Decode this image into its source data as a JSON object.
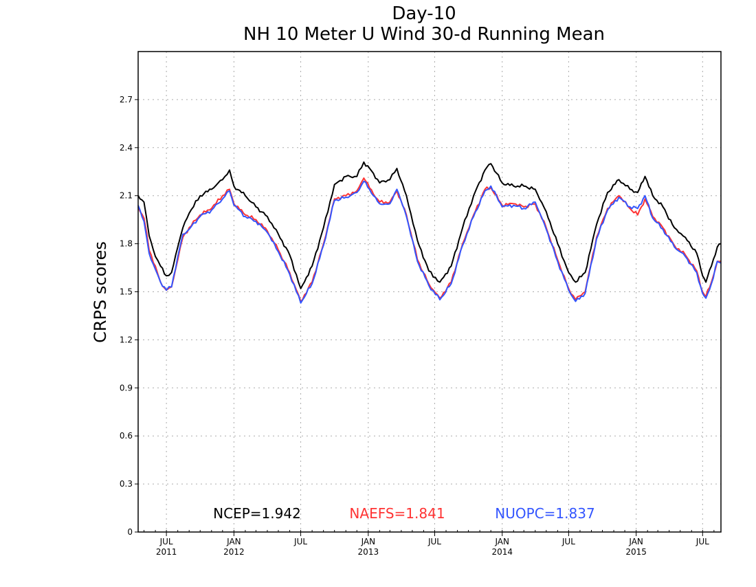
{
  "chart_data": {
    "type": "line",
    "title": "Day-10",
    "subtitle": "NH 10 Meter U Wind 30-d Running Mean",
    "xlabel": "",
    "ylabel": "CRPS scores",
    "ylim": [
      0,
      3.0
    ],
    "y_ticks": [
      "0",
      "0.3",
      "0.6",
      "0.9",
      "1.2",
      "1.5",
      "1.8",
      "2.1",
      "2.4",
      "2.7"
    ],
    "x_ticks": [
      {
        "month": "JUL",
        "year": "2011",
        "date": "2011-07-01"
      },
      {
        "month": "JAN",
        "year": "2012",
        "date": "2012-01-01"
      },
      {
        "month": "JUL",
        "year": "",
        "date": "2012-07-01"
      },
      {
        "month": "JAN",
        "year": "2013",
        "date": "2013-01-01"
      },
      {
        "month": "JUL",
        "year": "",
        "date": "2013-07-01"
      },
      {
        "month": "JAN",
        "year": "2014",
        "date": "2014-01-01"
      },
      {
        "month": "JUL",
        "year": "",
        "date": "2014-07-01"
      },
      {
        "month": "JAN",
        "year": "2015",
        "date": "2015-01-01"
      },
      {
        "month": "JUL",
        "year": "",
        "date": "2015-07-01"
      }
    ],
    "xlim": [
      "2011-04-15",
      "2015-08-20"
    ],
    "grid": true,
    "series": [
      {
        "name": "NCEP",
        "color": "#000000",
        "stat_label": "NCEP=1.942",
        "points": [
          [
            "2011-04-15",
            2.1
          ],
          [
            "2011-05-01",
            2.06
          ],
          [
            "2011-05-15",
            1.85
          ],
          [
            "2011-06-01",
            1.72
          ],
          [
            "2011-06-15",
            1.66
          ],
          [
            "2011-07-01",
            1.6
          ],
          [
            "2011-07-15",
            1.62
          ],
          [
            "2011-08-01",
            1.78
          ],
          [
            "2011-08-15",
            1.9
          ],
          [
            "2011-09-01",
            1.99
          ],
          [
            "2011-10-01",
            2.1
          ],
          [
            "2011-11-01",
            2.14
          ],
          [
            "2011-12-01",
            2.2
          ],
          [
            "2011-12-20",
            2.26
          ],
          [
            "2012-01-01",
            2.16
          ],
          [
            "2012-02-01",
            2.1
          ],
          [
            "2012-03-01",
            2.03
          ],
          [
            "2012-04-01",
            1.97
          ],
          [
            "2012-05-01",
            1.86
          ],
          [
            "2012-06-01",
            1.73
          ],
          [
            "2012-07-01",
            1.52
          ],
          [
            "2012-08-01",
            1.66
          ],
          [
            "2012-09-01",
            1.9
          ],
          [
            "2012-10-01",
            2.17
          ],
          [
            "2012-11-01",
            2.22
          ],
          [
            "2012-12-01",
            2.22
          ],
          [
            "2012-12-20",
            2.31
          ],
          [
            "2013-01-15",
            2.24
          ],
          [
            "2013-02-01",
            2.18
          ],
          [
            "2013-03-01",
            2.2
          ],
          [
            "2013-03-20",
            2.27
          ],
          [
            "2013-04-15",
            2.1
          ],
          [
            "2013-05-15",
            1.82
          ],
          [
            "2013-06-15",
            1.63
          ],
          [
            "2013-07-15",
            1.56
          ],
          [
            "2013-08-15",
            1.66
          ],
          [
            "2013-09-15",
            1.9
          ],
          [
            "2013-10-15",
            2.1
          ],
          [
            "2013-11-15",
            2.26
          ],
          [
            "2013-12-01",
            2.3
          ],
          [
            "2014-01-01",
            2.18
          ],
          [
            "2014-02-01",
            2.16
          ],
          [
            "2014-03-01",
            2.16
          ],
          [
            "2014-04-01",
            2.14
          ],
          [
            "2014-05-01",
            2.0
          ],
          [
            "2014-06-01",
            1.8
          ],
          [
            "2014-07-01",
            1.62
          ],
          [
            "2014-07-20",
            1.56
          ],
          [
            "2014-08-15",
            1.62
          ],
          [
            "2014-09-15",
            1.92
          ],
          [
            "2014-10-15",
            2.12
          ],
          [
            "2014-11-15",
            2.2
          ],
          [
            "2014-12-15",
            2.14
          ],
          [
            "2015-01-05",
            2.12
          ],
          [
            "2015-01-25",
            2.22
          ],
          [
            "2015-02-15",
            2.1
          ],
          [
            "2015-03-15",
            2.03
          ],
          [
            "2015-04-15",
            1.9
          ],
          [
            "2015-05-15",
            1.84
          ],
          [
            "2015-06-15",
            1.74
          ],
          [
            "2015-07-01",
            1.6
          ],
          [
            "2015-07-10",
            1.56
          ],
          [
            "2015-07-25",
            1.66
          ],
          [
            "2015-08-10",
            1.78
          ],
          [
            "2015-08-20",
            1.8
          ]
        ]
      },
      {
        "name": "NAEFS",
        "color": "#ff3333",
        "stat_label": "NAEFS=1.841",
        "points": [
          [
            "2011-04-15",
            2.03
          ],
          [
            "2011-05-01",
            1.96
          ],
          [
            "2011-05-15",
            1.76
          ],
          [
            "2011-06-01",
            1.66
          ],
          [
            "2011-06-15",
            1.56
          ],
          [
            "2011-07-01",
            1.51
          ],
          [
            "2011-07-15",
            1.53
          ],
          [
            "2011-08-01",
            1.7
          ],
          [
            "2011-08-15",
            1.84
          ],
          [
            "2011-09-01",
            1.9
          ],
          [
            "2011-10-01",
            1.98
          ],
          [
            "2011-11-01",
            2.02
          ],
          [
            "2011-12-01",
            2.1
          ],
          [
            "2011-12-20",
            2.14
          ],
          [
            "2012-01-01",
            2.05
          ],
          [
            "2012-02-01",
            1.98
          ],
          [
            "2012-03-01",
            1.95
          ],
          [
            "2012-04-01",
            1.88
          ],
          [
            "2012-05-01",
            1.76
          ],
          [
            "2012-06-01",
            1.62
          ],
          [
            "2012-07-01",
            1.44
          ],
          [
            "2012-08-01",
            1.56
          ],
          [
            "2012-09-01",
            1.8
          ],
          [
            "2012-10-01",
            2.08
          ],
          [
            "2012-11-01",
            2.1
          ],
          [
            "2012-12-01",
            2.13
          ],
          [
            "2012-12-20",
            2.21
          ],
          [
            "2013-01-15",
            2.11
          ],
          [
            "2013-02-01",
            2.06
          ],
          [
            "2013-03-01",
            2.06
          ],
          [
            "2013-03-20",
            2.13
          ],
          [
            "2013-04-15",
            1.98
          ],
          [
            "2013-05-15",
            1.7
          ],
          [
            "2013-06-15",
            1.55
          ],
          [
            "2013-07-15",
            1.46
          ],
          [
            "2013-08-15",
            1.56
          ],
          [
            "2013-09-15",
            1.8
          ],
          [
            "2013-10-15",
            1.98
          ],
          [
            "2013-11-15",
            2.14
          ],
          [
            "2013-12-01",
            2.15
          ],
          [
            "2014-01-01",
            2.04
          ],
          [
            "2014-02-01",
            2.05
          ],
          [
            "2014-03-01",
            2.03
          ],
          [
            "2014-04-01",
            2.05
          ],
          [
            "2014-05-01",
            1.9
          ],
          [
            "2014-06-01",
            1.7
          ],
          [
            "2014-07-01",
            1.52
          ],
          [
            "2014-07-20",
            1.45
          ],
          [
            "2014-08-15",
            1.5
          ],
          [
            "2014-09-15",
            1.84
          ],
          [
            "2014-10-15",
            2.02
          ],
          [
            "2014-11-15",
            2.1
          ],
          [
            "2014-12-15",
            2.02
          ],
          [
            "2015-01-05",
            1.98
          ],
          [
            "2015-01-25",
            2.08
          ],
          [
            "2015-02-15",
            1.97
          ],
          [
            "2015-03-15",
            1.9
          ],
          [
            "2015-04-15",
            1.79
          ],
          [
            "2015-05-15",
            1.73
          ],
          [
            "2015-06-15",
            1.63
          ],
          [
            "2015-07-01",
            1.5
          ],
          [
            "2015-07-10",
            1.47
          ],
          [
            "2015-07-25",
            1.56
          ],
          [
            "2015-08-10",
            1.69
          ],
          [
            "2015-08-20",
            1.69
          ]
        ]
      },
      {
        "name": "NUOPC",
        "color": "#3355ff",
        "stat_label": "NUOPC=1.837",
        "points": [
          [
            "2011-04-15",
            2.04
          ],
          [
            "2011-05-01",
            1.94
          ],
          [
            "2011-05-15",
            1.74
          ],
          [
            "2011-06-01",
            1.64
          ],
          [
            "2011-06-15",
            1.56
          ],
          [
            "2011-07-01",
            1.51
          ],
          [
            "2011-07-15",
            1.53
          ],
          [
            "2011-08-01",
            1.72
          ],
          [
            "2011-08-15",
            1.86
          ],
          [
            "2011-09-01",
            1.89
          ],
          [
            "2011-10-01",
            1.97
          ],
          [
            "2011-11-01",
            2.01
          ],
          [
            "2011-12-01",
            2.08
          ],
          [
            "2011-12-20",
            2.13
          ],
          [
            "2012-01-01",
            2.04
          ],
          [
            "2012-02-01",
            1.97
          ],
          [
            "2012-03-01",
            1.94
          ],
          [
            "2012-04-01",
            1.87
          ],
          [
            "2012-05-01",
            1.75
          ],
          [
            "2012-06-01",
            1.61
          ],
          [
            "2012-07-01",
            1.43
          ],
          [
            "2012-08-01",
            1.55
          ],
          [
            "2012-09-01",
            1.79
          ],
          [
            "2012-10-01",
            2.07
          ],
          [
            "2012-11-01",
            2.09
          ],
          [
            "2012-12-01",
            2.12
          ],
          [
            "2012-12-20",
            2.19
          ],
          [
            "2013-01-15",
            2.1
          ],
          [
            "2013-02-01",
            2.05
          ],
          [
            "2013-03-01",
            2.05
          ],
          [
            "2013-03-20",
            2.14
          ],
          [
            "2013-04-15",
            1.97
          ],
          [
            "2013-05-15",
            1.69
          ],
          [
            "2013-06-15",
            1.54
          ],
          [
            "2013-07-15",
            1.45
          ],
          [
            "2013-08-15",
            1.55
          ],
          [
            "2013-09-15",
            1.79
          ],
          [
            "2013-10-15",
            1.97
          ],
          [
            "2013-11-15",
            2.13
          ],
          [
            "2013-12-01",
            2.16
          ],
          [
            "2014-01-01",
            2.03
          ],
          [
            "2014-02-01",
            2.04
          ],
          [
            "2014-03-01",
            2.02
          ],
          [
            "2014-04-01",
            2.06
          ],
          [
            "2014-05-01",
            1.89
          ],
          [
            "2014-06-01",
            1.69
          ],
          [
            "2014-07-01",
            1.51
          ],
          [
            "2014-07-20",
            1.44
          ],
          [
            "2014-08-15",
            1.49
          ],
          [
            "2014-09-15",
            1.83
          ],
          [
            "2014-10-15",
            2.01
          ],
          [
            "2014-11-15",
            2.09
          ],
          [
            "2014-12-15",
            2.03
          ],
          [
            "2015-01-05",
            2.02
          ],
          [
            "2015-01-25",
            2.1
          ],
          [
            "2015-02-15",
            1.96
          ],
          [
            "2015-03-15",
            1.89
          ],
          [
            "2015-04-15",
            1.78
          ],
          [
            "2015-05-15",
            1.72
          ],
          [
            "2015-06-15",
            1.62
          ],
          [
            "2015-07-01",
            1.49
          ],
          [
            "2015-07-10",
            1.46
          ],
          [
            "2015-07-25",
            1.55
          ],
          [
            "2015-08-10",
            1.69
          ],
          [
            "2015-08-20",
            1.68
          ]
        ]
      }
    ]
  }
}
